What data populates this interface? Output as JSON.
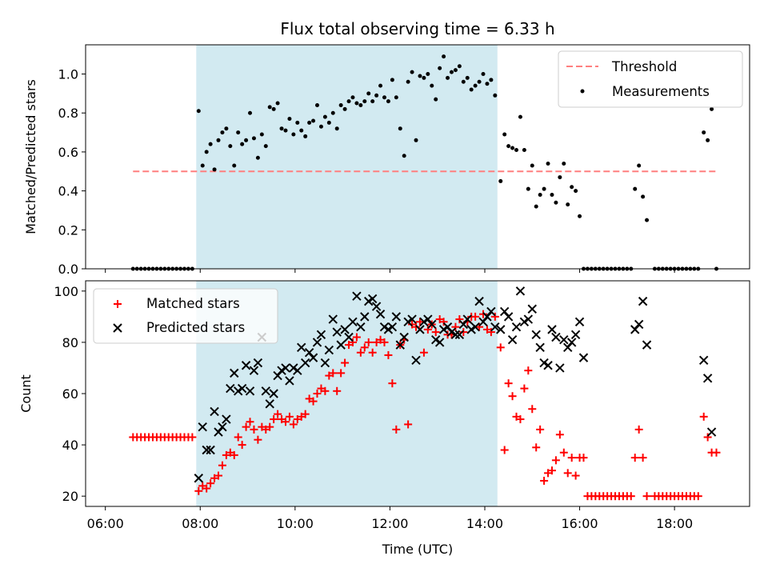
{
  "colors": {
    "shade": "#add8e6",
    "threshold": "#ff7f7f",
    "matched": "#ff0000",
    "predicted": "#000000",
    "measurement": "#000000"
  },
  "chart_data": [
    {
      "type": "scatter",
      "title": "Flux total observing time = 6.33 h",
      "ylabel": "Matched/Predicted stars",
      "ylim": [
        0,
        1.15
      ],
      "xlim": [
        "05:35",
        "19:35"
      ],
      "yticks": [
        0.0,
        0.2,
        0.4,
        0.6,
        0.8,
        1.0
      ],
      "ytick_labels": [
        "0.0",
        "0.2",
        "0.4",
        "0.6",
        "0.8",
        "1.0"
      ],
      "shaded_interval": [
        "07:55",
        "14:16"
      ],
      "legend": {
        "position": "top-right",
        "entries": [
          "Threshold",
          "Measurements"
        ]
      },
      "series": [
        {
          "name": "Threshold",
          "kind": "dashed-line",
          "x": [
            "06:35",
            "18:53"
          ],
          "y": [
            0.5,
            0.5
          ]
        },
        {
          "name": "Measurements",
          "kind": "points",
          "x": [
            "06:35",
            "06:40",
            "06:45",
            "06:50",
            "06:55",
            "07:00",
            "07:05",
            "07:10",
            "07:15",
            "07:20",
            "07:25",
            "07:30",
            "07:35",
            "07:40",
            "07:45",
            "07:50",
            "07:58",
            "08:03",
            "08:08",
            "08:13",
            "08:18",
            "08:23",
            "08:28",
            "08:33",
            "08:38",
            "08:43",
            "08:48",
            "08:53",
            "08:58",
            "09:03",
            "09:08",
            "09:13",
            "09:18",
            "09:23",
            "09:28",
            "09:33",
            "09:38",
            "09:43",
            "09:48",
            "09:53",
            "09:58",
            "10:03",
            "10:08",
            "10:13",
            "10:18",
            "10:23",
            "10:28",
            "10:33",
            "10:38",
            "10:43",
            "10:48",
            "10:53",
            "10:58",
            "11:03",
            "11:08",
            "11:13",
            "11:18",
            "11:23",
            "11:28",
            "11:33",
            "11:38",
            "11:43",
            "11:48",
            "11:53",
            "11:58",
            "12:03",
            "12:08",
            "12:13",
            "12:18",
            "12:23",
            "12:28",
            "12:33",
            "12:38",
            "12:43",
            "12:48",
            "12:53",
            "12:58",
            "13:03",
            "13:08",
            "13:13",
            "13:18",
            "13:23",
            "13:28",
            "13:33",
            "13:38",
            "13:43",
            "13:48",
            "13:53",
            "13:58",
            "14:03",
            "14:08",
            "14:13",
            "14:20",
            "14:25",
            "14:30",
            "14:35",
            "14:40",
            "14:45",
            "14:50",
            "14:55",
            "15:00",
            "15:05",
            "15:10",
            "15:15",
            "15:20",
            "15:25",
            "15:30",
            "15:35",
            "15:40",
            "15:45",
            "15:50",
            "15:55",
            "16:00",
            "16:05",
            "16:10",
            "16:15",
            "16:20",
            "16:25",
            "16:30",
            "16:35",
            "16:40",
            "16:45",
            "16:50",
            "16:55",
            "17:00",
            "17:05",
            "17:10",
            "17:15",
            "17:20",
            "17:25",
            "17:35",
            "17:40",
            "17:45",
            "17:50",
            "17:55",
            "18:00",
            "18:05",
            "18:10",
            "18:15",
            "18:20",
            "18:25",
            "18:30",
            "18:37",
            "18:42",
            "18:47",
            "18:53"
          ],
          "y": [
            0,
            0,
            0,
            0,
            0,
            0,
            0,
            0,
            0,
            0,
            0,
            0,
            0,
            0,
            0,
            0,
            0.81,
            0.53,
            0.6,
            0.64,
            0.51,
            0.66,
            0.7,
            0.72,
            0.63,
            0.53,
            0.7,
            0.64,
            0.66,
            0.8,
            0.67,
            0.57,
            0.69,
            0.63,
            0.83,
            0.82,
            0.85,
            0.72,
            0.71,
            0.77,
            0.69,
            0.75,
            0.71,
            0.68,
            0.75,
            0.76,
            0.84,
            0.73,
            0.78,
            0.75,
            0.8,
            0.72,
            0.84,
            0.82,
            0.86,
            0.88,
            0.85,
            0.84,
            0.86,
            0.9,
            0.86,
            0.89,
            0.94,
            0.88,
            0.86,
            0.97,
            0.88,
            0.72,
            0.58,
            0.96,
            1.01,
            0.66,
            0.99,
            0.98,
            1.0,
            0.94,
            0.87,
            1.03,
            1.09,
            0.98,
            1.01,
            1.02,
            1.04,
            0.96,
            0.98,
            0.92,
            0.94,
            0.96,
            1.0,
            0.95,
            0.97,
            0.89,
            0.45,
            0.69,
            0.63,
            0.62,
            0.61,
            0.78,
            0.61,
            0.41,
            0.53,
            0.32,
            0.38,
            0.41,
            0.54,
            0.38,
            0.34,
            0.47,
            0.54,
            0.33,
            0.42,
            0.4,
            0.27,
            0,
            0,
            0,
            0,
            0,
            0,
            0,
            0,
            0,
            0,
            0,
            0,
            0,
            0.41,
            0.53,
            0.37,
            0.25,
            0,
            0,
            0,
            0,
            0,
            0,
            0,
            0,
            0,
            0,
            0,
            0,
            0.7,
            0.66,
            0.82,
            0
          ]
        }
      ]
    },
    {
      "type": "scatter",
      "xlabel": "Time (UTC)",
      "ylabel": "Count",
      "ylim": [
        16,
        104
      ],
      "xlim": [
        "05:35",
        "19:35"
      ],
      "yticks": [
        20,
        40,
        60,
        80,
        100
      ],
      "ytick_labels": [
        "20",
        "40",
        "60",
        "80",
        "100"
      ],
      "xticks": [
        "06:00",
        "08:00",
        "10:00",
        "12:00",
        "14:00",
        "16:00",
        "18:00"
      ],
      "shaded_interval": [
        "07:55",
        "14:16"
      ],
      "legend": {
        "position": "top-left",
        "entries": [
          "Matched stars",
          "Predicted stars"
        ]
      },
      "series": [
        {
          "name": "Matched stars",
          "marker": "+",
          "x": [
            "06:35",
            "06:40",
            "06:45",
            "06:50",
            "06:55",
            "07:00",
            "07:05",
            "07:10",
            "07:15",
            "07:20",
            "07:25",
            "07:30",
            "07:35",
            "07:40",
            "07:45",
            "07:50",
            "07:58",
            "08:03",
            "08:08",
            "08:13",
            "08:18",
            "08:23",
            "08:28",
            "08:33",
            "08:38",
            "08:43",
            "08:48",
            "08:53",
            "08:58",
            "09:03",
            "09:08",
            "09:13",
            "09:18",
            "09:23",
            "09:28",
            "09:33",
            "09:38",
            "09:43",
            "09:48",
            "09:53",
            "09:58",
            "10:03",
            "10:08",
            "10:13",
            "10:18",
            "10:23",
            "10:28",
            "10:33",
            "10:38",
            "10:43",
            "10:48",
            "10:53",
            "10:58",
            "11:03",
            "11:08",
            "11:13",
            "11:18",
            "11:23",
            "11:28",
            "11:33",
            "11:38",
            "11:43",
            "11:48",
            "11:53",
            "11:58",
            "12:03",
            "12:08",
            "12:13",
            "12:18",
            "12:23",
            "12:28",
            "12:33",
            "12:38",
            "12:43",
            "12:48",
            "12:53",
            "12:58",
            "13:03",
            "13:08",
            "13:13",
            "13:18",
            "13:23",
            "13:28",
            "13:33",
            "13:38",
            "13:43",
            "13:48",
            "13:53",
            "13:58",
            "14:03",
            "14:08",
            "14:13",
            "14:20",
            "14:25",
            "14:30",
            "14:35",
            "14:40",
            "14:45",
            "14:50",
            "14:55",
            "15:00",
            "15:05",
            "15:10",
            "15:15",
            "15:20",
            "15:25",
            "15:30",
            "15:35",
            "15:40",
            "15:45",
            "15:50",
            "15:55",
            "16:00",
            "16:05",
            "16:10",
            "16:15",
            "16:20",
            "16:25",
            "16:30",
            "16:35",
            "16:40",
            "16:45",
            "16:50",
            "16:55",
            "17:00",
            "17:05",
            "17:10",
            "17:15",
            "17:20",
            "17:25",
            "17:35",
            "17:40",
            "17:45",
            "17:50",
            "17:55",
            "18:00",
            "18:05",
            "18:10",
            "18:15",
            "18:20",
            "18:25",
            "18:30",
            "18:37",
            "18:42",
            "18:47",
            "18:53"
          ],
          "y": [
            43,
            43,
            43,
            43,
            43,
            43,
            43,
            43,
            43,
            43,
            43,
            43,
            43,
            43,
            43,
            43,
            22,
            24,
            23,
            25,
            27,
            28,
            32,
            36,
            37,
            36,
            43,
            40,
            47,
            49,
            46,
            42,
            47,
            46,
            47,
            50,
            52,
            50,
            49,
            51,
            48,
            50,
            51,
            52,
            58,
            57,
            60,
            62,
            61,
            67,
            68,
            61,
            68,
            72,
            79,
            80,
            82,
            76,
            78,
            80,
            76,
            80,
            81,
            80,
            75,
            64,
            46,
            79,
            81,
            48,
            87,
            86,
            88,
            76,
            85,
            87,
            84,
            89,
            88,
            83,
            83,
            86,
            89,
            84,
            88,
            90,
            90,
            86,
            91,
            85,
            84,
            90,
            78,
            38,
            64,
            59,
            51,
            50,
            62,
            69,
            54,
            39,
            46,
            26,
            29,
            30,
            34,
            44,
            37,
            29,
            35,
            28,
            35,
            35,
            20,
            20,
            20,
            20,
            20,
            20,
            20,
            20,
            20,
            20,
            20,
            20,
            35,
            46,
            35,
            20,
            20,
            20,
            20,
            20,
            20,
            20,
            20,
            20,
            20,
            20,
            20,
            20,
            51,
            43,
            37,
            37
          ]
        },
        {
          "name": "Predicted stars",
          "marker": "x",
          "x": [
            "07:58",
            "08:03",
            "08:08",
            "08:13",
            "08:18",
            "08:23",
            "08:28",
            "08:33",
            "08:38",
            "08:43",
            "08:48",
            "08:53",
            "08:58",
            "09:03",
            "09:08",
            "09:13",
            "09:18",
            "09:23",
            "09:28",
            "09:33",
            "09:38",
            "09:43",
            "09:48",
            "09:53",
            "09:58",
            "10:03",
            "10:08",
            "10:13",
            "10:18",
            "10:23",
            "10:28",
            "10:33",
            "10:38",
            "10:43",
            "10:48",
            "10:53",
            "10:58",
            "11:03",
            "11:08",
            "11:13",
            "11:18",
            "11:23",
            "11:28",
            "11:33",
            "11:38",
            "11:43",
            "11:48",
            "11:53",
            "11:58",
            "12:03",
            "12:08",
            "12:13",
            "12:18",
            "12:23",
            "12:28",
            "12:33",
            "12:38",
            "12:43",
            "12:48",
            "12:53",
            "12:58",
            "13:03",
            "13:08",
            "13:13",
            "13:18",
            "13:23",
            "13:28",
            "13:33",
            "13:38",
            "13:43",
            "13:48",
            "13:53",
            "13:58",
            "14:03",
            "14:08",
            "14:13",
            "14:20",
            "14:25",
            "14:30",
            "14:35",
            "14:40",
            "14:45",
            "14:50",
            "14:55",
            "15:00",
            "15:05",
            "15:10",
            "15:15",
            "15:20",
            "15:25",
            "15:30",
            "15:35",
            "15:40",
            "15:45",
            "15:50",
            "15:55",
            "16:00",
            "16:05",
            "17:10",
            "17:15",
            "17:20",
            "17:25",
            "18:37",
            "18:42",
            "18:47"
          ],
          "y": [
            27,
            47,
            38,
            38,
            53,
            45,
            47,
            50,
            62,
            68,
            61,
            62,
            71,
            61,
            69,
            72,
            82,
            61,
            56,
            60,
            67,
            69,
            70,
            65,
            70,
            69,
            78,
            72,
            76,
            74,
            80,
            83,
            72,
            77,
            89,
            84,
            79,
            85,
            82,
            88,
            98,
            86,
            90,
            96,
            97,
            94,
            91,
            86,
            85,
            86,
            90,
            79,
            82,
            88,
            89,
            73,
            85,
            88,
            89,
            87,
            81,
            80,
            85,
            86,
            84,
            83,
            83,
            87,
            89,
            85,
            86,
            96,
            88,
            90,
            92,
            86,
            85,
            92,
            90,
            81,
            86,
            100,
            88,
            89,
            93,
            83,
            78,
            72,
            71,
            85,
            82,
            70,
            81,
            78,
            80,
            83,
            88,
            74,
            85,
            87,
            96,
            79,
            73,
            66,
            45
          ]
        }
      ]
    }
  ]
}
